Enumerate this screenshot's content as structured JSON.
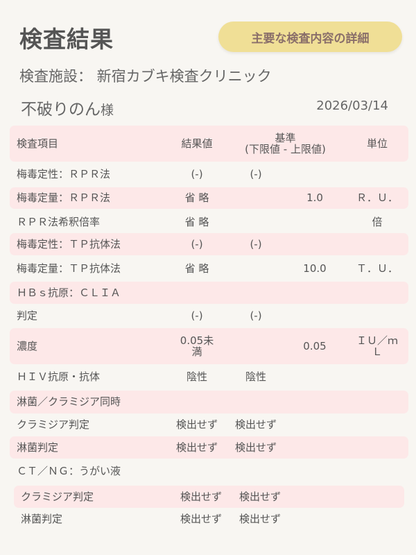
{
  "title": "検査結果",
  "detail_button": "主要な検査内容の詳細",
  "facility": "検査施設：  新宿カブキ検査クリニック",
  "patient_name": "不破りのん",
  "patient_suffix": "様",
  "date": "2026/03/14",
  "colors": {
    "background": "#f8f6f2",
    "row_highlight": "#fde8e8",
    "button": "#f0df96",
    "button_text": "#8a6f6a"
  },
  "table": {
    "headers": {
      "item": "検査項目",
      "result": "結果値",
      "range_line1": "基準",
      "range_line2": "(下限値 - 上限値)",
      "unit": "単位"
    },
    "rows": [
      {
        "item": "梅毒定性：ＲＰＲ法",
        "result": "(-)",
        "lower": "(-)",
        "upper": "",
        "unit": ""
      },
      {
        "item": "梅毒定量：ＲＰＲ法",
        "result": "省 略",
        "lower": "",
        "upper": "1.0",
        "unit": "Ｒ．Ｕ．"
      },
      {
        "item": "ＲＰＲ法希釈倍率",
        "result": "省 略",
        "lower": "",
        "upper": "",
        "unit": "倍"
      },
      {
        "item": "梅毒定性：ＴＰ抗体法",
        "result": "(-)",
        "lower": "(-)",
        "upper": "",
        "unit": ""
      },
      {
        "item": "梅毒定量：ＴＰ抗体法",
        "result": "省 略",
        "lower": "",
        "upper": "10.0",
        "unit": "Ｔ．Ｕ．"
      },
      {
        "item": "ＨＢｓ抗原：ＣＬＩＡ",
        "result": "",
        "lower": "",
        "upper": "",
        "unit": ""
      },
      {
        "item": "判定",
        "result": "(-)",
        "lower": "(-)",
        "upper": "",
        "unit": ""
      },
      {
        "item": "濃度",
        "result": "0.05未満",
        "lower": "",
        "upper": "0.05",
        "unit": "ＩＵ／ｍＬ"
      },
      {
        "item": "ＨＩＶ抗原・抗体",
        "result": "陰性",
        "lower": "陰性",
        "upper": "",
        "unit": ""
      },
      {
        "item": "淋菌／クラミジア同時",
        "result": "",
        "lower": "",
        "upper": "",
        "unit": ""
      },
      {
        "item": "クラミジア判定",
        "result": "検出せず",
        "lower": "検出せず",
        "upper": "",
        "unit": ""
      },
      {
        "item": "淋菌判定",
        "result": "検出せず",
        "lower": "検出せず",
        "upper": "",
        "unit": ""
      },
      {
        "item": "ＣＴ／ＮＧ：うがい液",
        "result": "",
        "lower": "",
        "upper": "",
        "unit": ""
      },
      {
        "item": "クラミジア判定",
        "result": "検出せず",
        "lower": "検出せず",
        "upper": "",
        "unit": ""
      },
      {
        "item": "淋菌判定",
        "result": "検出せず",
        "lower": "検出せず",
        "upper": "",
        "unit": ""
      }
    ]
  }
}
